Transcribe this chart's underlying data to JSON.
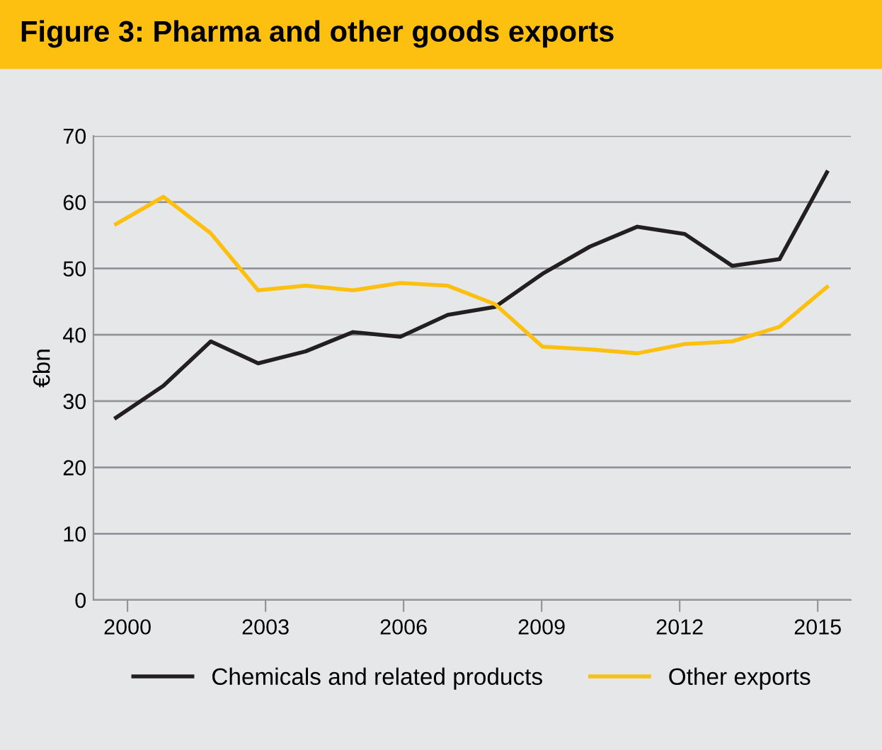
{
  "chart_data": {
    "type": "line",
    "title": "Figure 3: Pharma and other goods exports",
    "ylabel": "€bn",
    "x": [
      1999.75,
      2000.78,
      2001.81,
      2002.84,
      2003.87,
      2004.9,
      2005.93,
      2006.96,
      2007.99,
      2009.02,
      2010.05,
      2011.08,
      2012.11,
      2013.14,
      2014.17,
      2015.2
    ],
    "series": [
      {
        "name": "Chemicals and related products",
        "color": "#231f20",
        "values": [
          27.5,
          32.3,
          39,
          35.7,
          37.5,
          40.4,
          39.7,
          43,
          44.2,
          49.2,
          53.3,
          56.3,
          55.2,
          50.4,
          51.4,
          64.5
        ]
      },
      {
        "name": "Other exports",
        "color": "#fdc010",
        "values": [
          56.7,
          60.8,
          55.3,
          46.7,
          47.4,
          46.7,
          47.8,
          47.4,
          44.6,
          38.2,
          37.8,
          37.2,
          38.6,
          39,
          41.2,
          47.2
        ]
      }
    ],
    "xlim": [
      1999.26,
      2015.72
    ],
    "xticks": [
      2000,
      2003,
      2006,
      2009,
      2012,
      2015
    ],
    "ylim": [
      0,
      70
    ],
    "yticks": [
      0,
      10,
      20,
      30,
      40,
      50,
      60,
      70
    ],
    "grid": "y",
    "legend": "bottom",
    "marker": "none",
    "line_style": "solid"
  }
}
